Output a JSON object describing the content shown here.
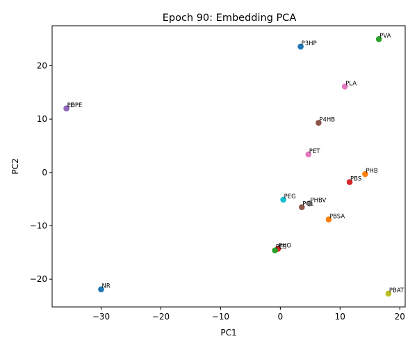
{
  "chart_data": {
    "type": "scatter",
    "title": "Epoch 90: Embedding PCA",
    "xlabel": "PC1",
    "ylabel": "PC2",
    "xlim": [
      -38.2,
      20.9
    ],
    "ylim": [
      -25.2,
      27.5
    ],
    "xticks": [
      -30,
      -20,
      -10,
      0,
      10,
      20
    ],
    "yticks": [
      -20,
      -10,
      0,
      10,
      20
    ],
    "xtick_labels": [
      "−30",
      "−20",
      "−10",
      "0",
      "10",
      "20"
    ],
    "ytick_labels": [
      "−20",
      "−10",
      "0",
      "10",
      "20"
    ],
    "grid": false,
    "points": [
      {
        "label": "P3HP",
        "x": 3.4,
        "y": 23.6,
        "color": "#1f77b4"
      },
      {
        "label": "PVA",
        "x": 16.5,
        "y": 25.0,
        "color": "#2ca02c"
      },
      {
        "label": "PLA",
        "x": 10.8,
        "y": 16.1,
        "color": "#e377c2"
      },
      {
        "label": "PE",
        "x": -35.8,
        "y": 12.0,
        "color": "#17becf"
      },
      {
        "label": "LDPE",
        "x": -35.8,
        "y": 12.0,
        "color": "#9467bd"
      },
      {
        "label": "P4HB",
        "x": 6.4,
        "y": 9.3,
        "color": "#8c564b"
      },
      {
        "label": "PET",
        "x": 4.7,
        "y": 3.4,
        "color": "#e377c2"
      },
      {
        "label": "PHB",
        "x": 14.2,
        "y": -0.3,
        "color": "#ff7f0e"
      },
      {
        "label": "PBS",
        "x": 11.6,
        "y": -1.8,
        "color": "#d62728"
      },
      {
        "label": "PEG",
        "x": 0.5,
        "y": -5.1,
        "color": "#17becf"
      },
      {
        "label": "PHBV",
        "x": 4.9,
        "y": -5.8,
        "color": "#7f7f7f"
      },
      {
        "label": "PCL",
        "x": 3.6,
        "y": -6.5,
        "color": "#8c564b"
      },
      {
        "label": "PBSA",
        "x": 8.1,
        "y": -8.8,
        "color": "#ff7f0e"
      },
      {
        "label": "PHO",
        "x": -0.4,
        "y": -14.3,
        "color": "#d62728"
      },
      {
        "label": "PES",
        "x": -0.9,
        "y": -14.6,
        "color": "#2ca02c"
      },
      {
        "label": "NR",
        "x": -30.0,
        "y": -21.9,
        "color": "#1f77b4"
      },
      {
        "label": "PBAT",
        "x": 18.1,
        "y": -22.7,
        "color": "#bcbd22"
      }
    ]
  }
}
